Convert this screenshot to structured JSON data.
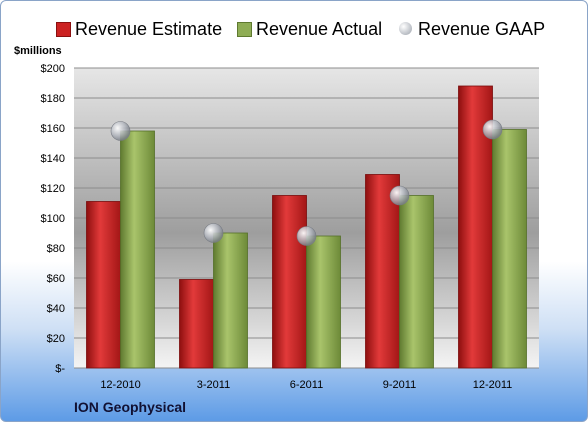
{
  "chart_data": {
    "type": "bar",
    "title": "ION Geophysical",
    "ylabel": "$millions",
    "xlabel": "",
    "ylim": [
      0,
      200
    ],
    "y_ticks": [
      {
        "value": 0,
        "label": "$-"
      },
      {
        "value": 20,
        "label": "$20"
      },
      {
        "value": 40,
        "label": "$40"
      },
      {
        "value": 60,
        "label": "$60"
      },
      {
        "value": 80,
        "label": "$80"
      },
      {
        "value": 100,
        "label": "$100"
      },
      {
        "value": 120,
        "label": "$120"
      },
      {
        "value": 140,
        "label": "$140"
      },
      {
        "value": 160,
        "label": "$160"
      },
      {
        "value": 180,
        "label": "$180"
      },
      {
        "value": 200,
        "label": "$200"
      }
    ],
    "categories": [
      "12-2010",
      "3-2011",
      "6-2011",
      "9-2011",
      "12-2011"
    ],
    "series": [
      {
        "name": "Revenue Estimate",
        "type": "bar",
        "color": "#cc2222",
        "values": [
          111,
          59,
          115,
          129,
          188
        ]
      },
      {
        "name": "Revenue Actual",
        "type": "bar",
        "color": "#8fad55",
        "values": [
          158,
          90,
          88,
          115,
          159
        ]
      },
      {
        "name": "Revenue GAAP",
        "type": "scatter",
        "color": "#b8bcc4",
        "values": [
          158,
          90,
          88,
          115,
          159
        ]
      }
    ],
    "grid": true,
    "legend": "top"
  }
}
